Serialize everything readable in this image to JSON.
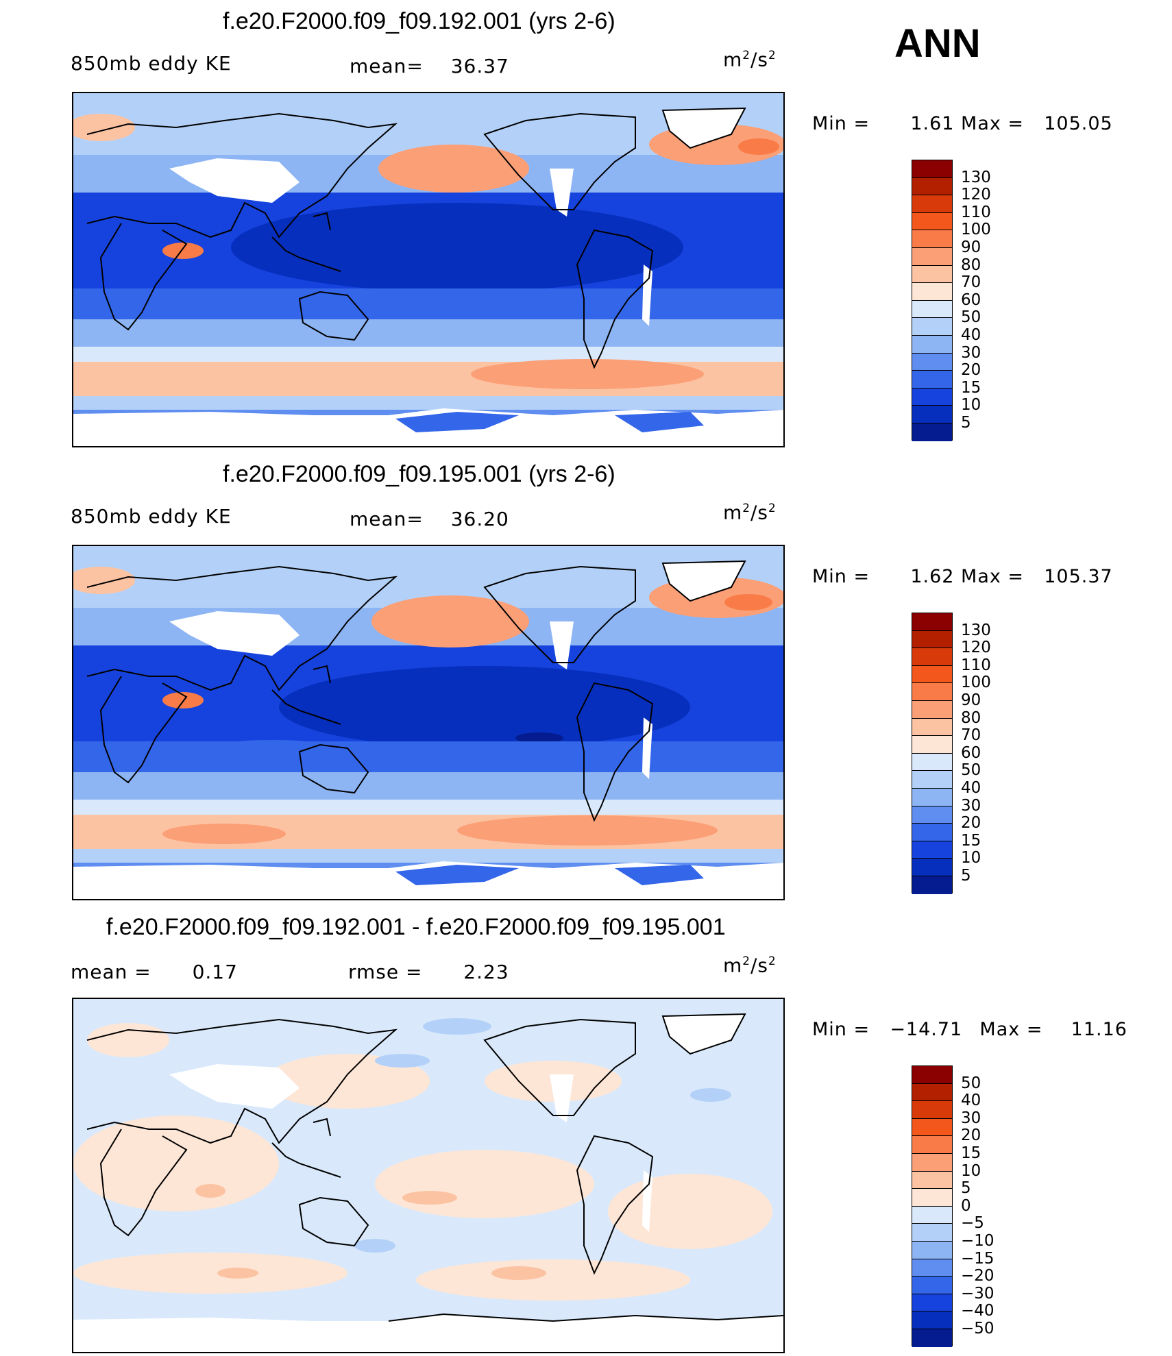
{
  "season": "ANN",
  "units_base": "m",
  "units_sep": "/s",
  "units_exp": "2",
  "panels": [
    {
      "title": "f.e20.F2000.f09_f09.192.001 (yrs 2-6)",
      "field": "850mb eddy KE",
      "stat1_label": "mean=",
      "stat1_value": "36.37",
      "min_label": "Min =",
      "min_value": "1.61",
      "max_label": "Max =",
      "max_value": "105.05"
    },
    {
      "title": "f.e20.F2000.f09_f09.195.001 (yrs 2-6)",
      "field": "850mb eddy KE",
      "stat1_label": "mean=",
      "stat1_value": "36.20",
      "min_label": "Min =",
      "min_value": "1.62",
      "max_label": "Max =",
      "max_value": "105.37"
    },
    {
      "title": "f.e20.F2000.f09_f09.192.001 - f.e20.F2000.f09_f09.195.001",
      "stat0_label": "mean =",
      "stat0_value": "0.17",
      "stat1_label": "rmse =",
      "stat1_value": "2.23",
      "min_label": "Min =",
      "min_value": "−14.71",
      "max_label": "Max =",
      "max_value": "11.16"
    }
  ],
  "colorbar_abs": {
    "labels": [
      "130",
      "120",
      "110",
      "100",
      "90",
      "80",
      "70",
      "60",
      "50",
      "40",
      "30",
      "20",
      "15",
      "10",
      "5"
    ],
    "colors": [
      "#8b0000",
      "#b22000",
      "#d83a0a",
      "#f4571b",
      "#f97c48",
      "#fb9f76",
      "#fcc3a3",
      "#fde6d6",
      "#d9e9fb",
      "#b3d1f8",
      "#8db5f4",
      "#5f8ef0",
      "#3466ea",
      "#1643dd",
      "#062fbd",
      "#041c8f"
    ]
  },
  "colorbar_diff": {
    "labels": [
      "50",
      "40",
      "30",
      "20",
      "15",
      "10",
      "5",
      "0",
      "−5",
      "−10",
      "−15",
      "−20",
      "−30",
      "−40",
      "−50"
    ],
    "colors": [
      "#8b0000",
      "#b22000",
      "#d83a0a",
      "#f4571b",
      "#f97c48",
      "#fb9f76",
      "#fcc3a3",
      "#fde6d6",
      "#d9e9fb",
      "#b3d1f8",
      "#8db5f4",
      "#5f8ef0",
      "#3466ea",
      "#1643dd",
      "#062fbd",
      "#041c8f"
    ]
  }
}
